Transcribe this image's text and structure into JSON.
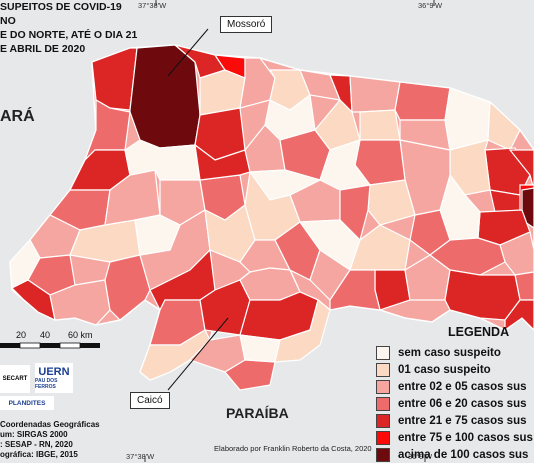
{
  "title_lines": [
    "SUPEITOS DE COVID-19 NO",
    "E DO NORTE, ATÉ O DIA 21",
    "E ABRIL DE 2020"
  ],
  "state_labels": {
    "ceara": "ARÁ",
    "paraiba": "PARAÍBA"
  },
  "callouts": {
    "mossoro": "Mossoró",
    "caico": "Caicó"
  },
  "coordinates": {
    "top_left": "37°38'W",
    "top_right": "36°9'W",
    "bottom_left": "37°38'W",
    "bottom_right": "36°9'W"
  },
  "legend": {
    "title": "LEGENDA",
    "items": [
      {
        "label": "sem caso suspeito",
        "color": "#fdf6ef"
      },
      {
        "label": "01 caso suspeito",
        "color": "#fbd9c3"
      },
      {
        "label": "entre 02 e 05 casos sus",
        "color": "#f6a6a0"
      },
      {
        "label": "entre 06 e 20 casos sus",
        "color": "#ee6b6b"
      },
      {
        "label": "entre 21 e 75 casos sus",
        "color": "#dc2626"
      },
      {
        "label": "entre 75 e 100 casos sus",
        "color": "#fb0a0a"
      },
      {
        "label": "acima de 100 casos sus",
        "color": "#6e0a0e"
      }
    ]
  },
  "scale": {
    "ticks": [
      "20",
      "40",
      "60 km"
    ]
  },
  "logos": {
    "uern": "UERN",
    "uern_sub": "PAU DOS FERROS",
    "secart": "SECART",
    "plandites": "PLANDITES"
  },
  "metadata_lines": [
    "Coordenadas Geográficas",
    "um: SIRGAS 2000",
    ": SESAP - RN, 2020",
    "ográfica: IBGE, 2015"
  ],
  "credit": "Elaborado por Franklin Roberto da Costa, 2020",
  "colors": {
    "background": "#e6e8ea",
    "border": "#ffffff"
  }
}
